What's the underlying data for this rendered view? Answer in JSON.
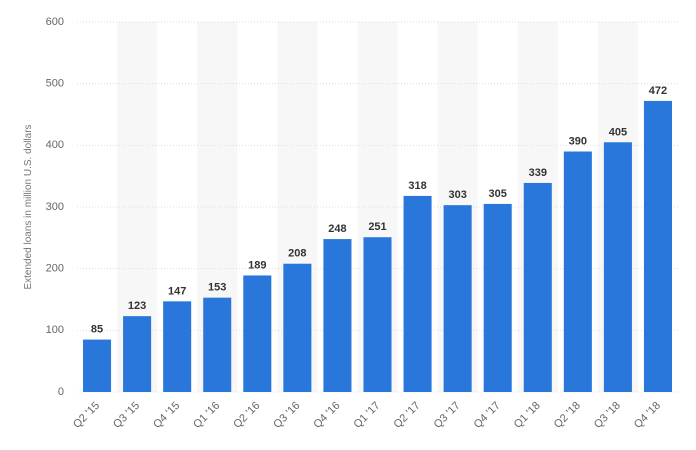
{
  "chart_data": {
    "type": "bar",
    "title": "",
    "xlabel": "",
    "ylabel": "Extended loans in million U.S. dollars",
    "ylim": [
      0,
      600
    ],
    "yticks": [
      0,
      100,
      200,
      300,
      400,
      500,
      600
    ],
    "grid": true,
    "legend": "none",
    "categories": [
      "Q2 '15",
      "Q3 '15",
      "Q4 '15",
      "Q1 '16",
      "Q2 '16",
      "Q3 '16",
      "Q4 '16",
      "Q1 '17",
      "Q2 '17",
      "Q3 '17",
      "Q4 '17",
      "Q1 '18",
      "Q2 '18",
      "Q3 '18",
      "Q4 '18"
    ],
    "values": [
      85,
      123,
      147,
      153,
      189,
      208,
      248,
      251,
      318,
      303,
      305,
      339,
      390,
      405,
      472
    ],
    "colors": {
      "bar": "#2a77db",
      "band": "#f7f7f7",
      "grid": "#dedede"
    }
  }
}
